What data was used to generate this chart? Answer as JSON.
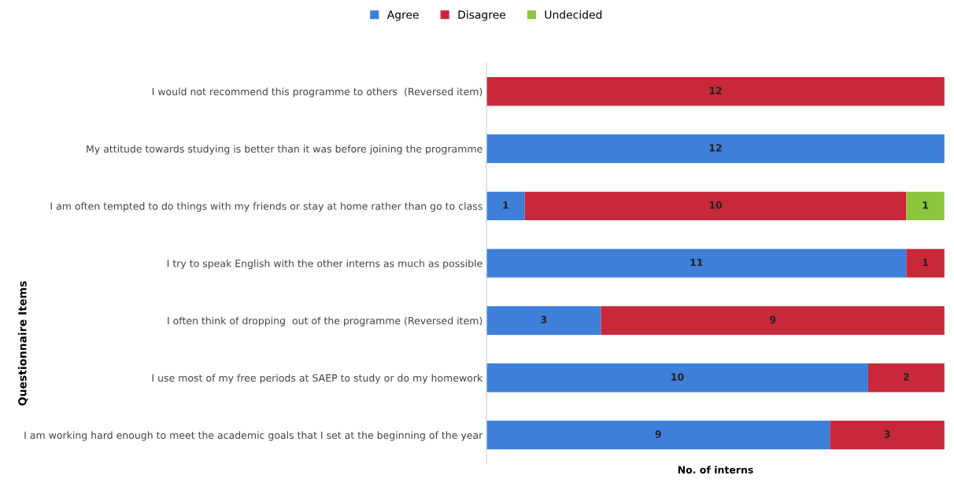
{
  "chart_data": {
    "type": "bar",
    "orientation": "horizontal",
    "stacked": true,
    "xlabel": "No. of interns",
    "ylabel": "Questionnaire Items",
    "categories": [
      "I would not recommend this programme to others  (Reversed item)",
      "My attitude towards studying is better than it was before joining the programme",
      "I am often tempted to do things with my friends or stay at home rather than go to class",
      "I try to speak English with the other interns as much as possible",
      "I often think of dropping  out of the programme (Reversed item)",
      "I use most of my free periods at SAEP to study or do my homework",
      "I am working hard enough to meet the academic goals that I set at the beginning of the year"
    ],
    "series": [
      {
        "name": "Agree",
        "color": "#3d7fd9",
        "values": [
          null,
          12,
          1,
          11,
          3,
          10,
          9
        ]
      },
      {
        "name": "Disagree",
        "color": "#c8283a",
        "values": [
          12,
          null,
          10,
          1,
          9,
          2,
          3
        ]
      },
      {
        "name": "Undecided",
        "color": "#8cc63f",
        "values": [
          null,
          null,
          1,
          null,
          null,
          null,
          null
        ]
      }
    ],
    "xlim": [
      0,
      12
    ],
    "tick_labels": "y",
    "data_labels": true,
    "legend": "top",
    "grid": false
  }
}
